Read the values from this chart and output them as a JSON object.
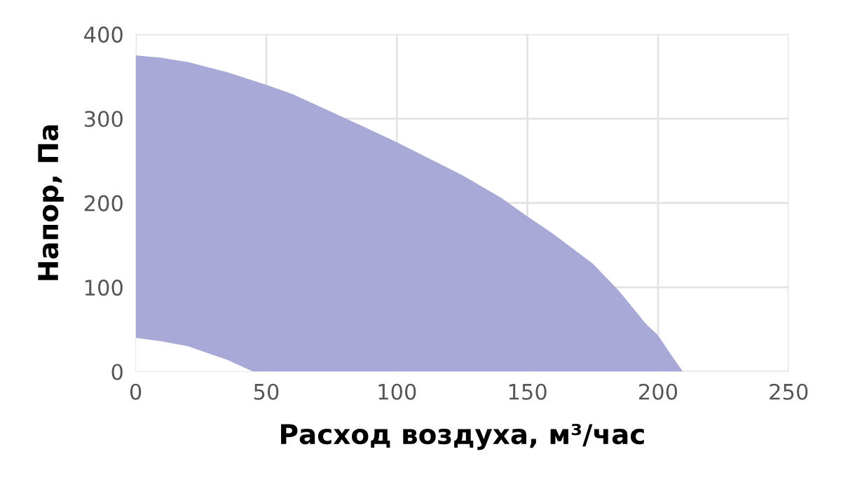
{
  "chart_data": {
    "type": "area",
    "xlabel": "Расход воздуха, м³/час",
    "ylabel": "Напор, Па",
    "xlim": [
      0,
      250
    ],
    "ylim": [
      0,
      400
    ],
    "xticks": [
      0,
      50,
      100,
      150,
      200,
      250
    ],
    "yticks": [
      0,
      100,
      200,
      300,
      400
    ],
    "grid": true,
    "series": [
      {
        "x": [
          0,
          10,
          20,
          35,
          45,
          50,
          60,
          75,
          100,
          125,
          140,
          150,
          160,
          175,
          185,
          190,
          195,
          200,
          205,
          209.5
        ],
        "values": [
          375,
          372,
          367,
          355,
          345,
          340,
          329,
          308,
          272,
          233,
          206,
          184,
          163,
          128,
          96,
          77,
          58,
          43,
          20,
          0
        ],
        "color": "#a8a9d6"
      },
      {
        "x": [
          0,
          10,
          20,
          35,
          45
        ],
        "values": [
          40,
          36,
          30,
          14,
          0
        ],
        "color": "#ffffff"
      }
    ]
  }
}
